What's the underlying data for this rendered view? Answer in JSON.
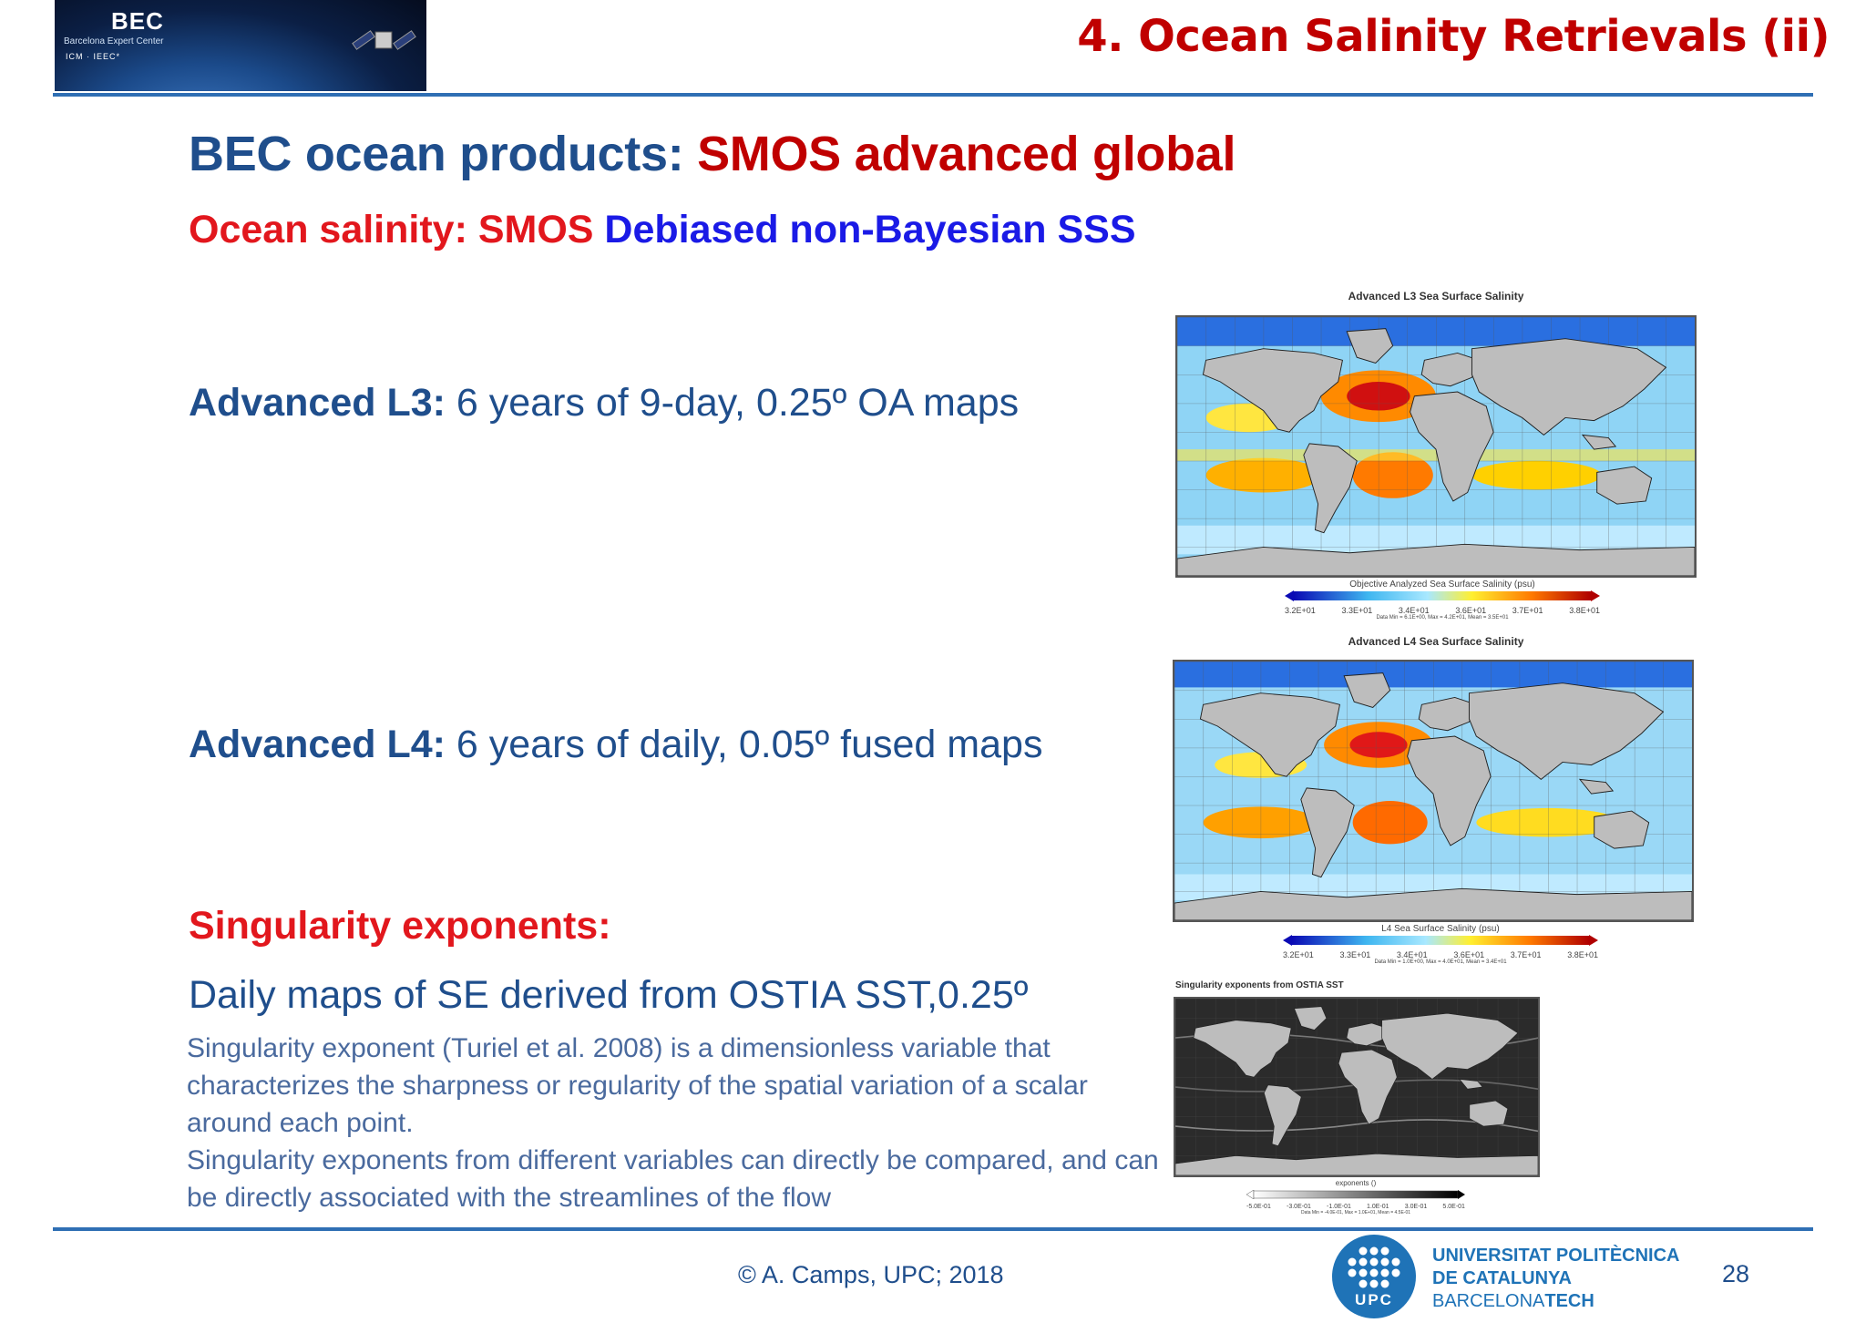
{
  "header": {
    "logo": {
      "name": "BEC",
      "subtitle": "Barcelona Expert Center",
      "institutions": "ICM   ·   IEEC*"
    },
    "title": "4. Ocean Salinity Retrievals (ii)"
  },
  "heading": {
    "part1": "BEC ocean products: ",
    "part2": "SMOS advanced global"
  },
  "subheading": {
    "part1": "Ocean salinity: SMOS ",
    "part2": "Debiased non-Bayesian SSS"
  },
  "l3": {
    "label": "Advanced L3:",
    "text": " 6 years of 9-day, 0.25º OA maps"
  },
  "l4": {
    "label": "Advanced L4:",
    "text": " 6 years of daily, 0.05º fused maps"
  },
  "se": {
    "title": "Singularity exponents:",
    "line": "Daily maps of SE derived from OSTIA SST,0.25º",
    "desc1": "Singularity exponent (Turiel et al. 2008) is a dimensionless variable that characterizes the sharpness or regularity of the spatial variation of a scalar around each point.",
    "desc2": "Singularity exponents from different variables can directly be compared, and can be directly associated with the streamlines of the flow"
  },
  "maps": {
    "l3": {
      "caption": "Advanced L3 Sea Surface Salinity",
      "colorbar_label": "Objective Analyzed Sea Surface Salinity (psu)",
      "ticks": [
        "3.2E+01",
        "3.3E+01",
        "3.4E+01",
        "3.6E+01",
        "3.7E+01",
        "3.8E+01"
      ],
      "stats": "Data Min = 6.1E+00, Max = 4.2E+01, Mean = 3.5E+01"
    },
    "l4": {
      "caption": "Advanced L4 Sea Surface Salinity",
      "colorbar_label": "L4 Sea Surface Salinity (psu)",
      "ticks": [
        "3.2E+01",
        "3.3E+01",
        "3.4E+01",
        "3.6E+01",
        "3.7E+01",
        "3.8E+01"
      ],
      "stats": "Data Min = 1.0E+00, Max = 4.0E+01, Mean = 3.4E+01"
    },
    "se": {
      "caption": "Singularity exponents from OSTIA SST",
      "colorbar_label": "exponents ()",
      "ticks": [
        "-5.0E-01",
        "-3.0E-01",
        "-1.0E-01",
        "1.0E-01",
        "3.0E-01",
        "5.0E-01"
      ],
      "stats": "Data Min = -4.0E-01, Max = 1.0E+01, Mean = 4.5E-01"
    }
  },
  "footer": {
    "copyright": "© A. Camps, UPC; 2018",
    "upc_badge": "UPC",
    "university": [
      "UNIVERSITAT POLITÈCNICA",
      "DE CATALUNYA",
      "BARCELONA"
    ],
    "university_tech": "TECH",
    "page": "28"
  }
}
